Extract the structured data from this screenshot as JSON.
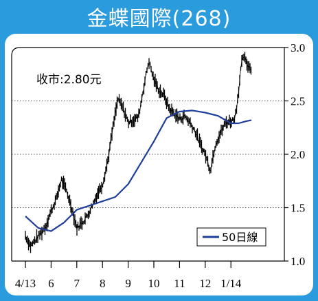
{
  "title": "金蝶國際(268)",
  "close_label": "收市:2.80元",
  "colors": {
    "frame": "#2a9bdc",
    "price": "#000000",
    "ma": "#1f3d9a",
    "grid": "#555555"
  },
  "chart_data": {
    "type": "line",
    "title": "金蝶國際(268)",
    "annotation": "收市:2.80元",
    "x_tick_labels": [
      "4/13",
      "6",
      "7",
      "8",
      "9",
      "10",
      "11",
      "12",
      "1/14"
    ],
    "y_ticks": [
      "1.0",
      "1.5",
      "2.0",
      "2.5",
      "3.0"
    ],
    "y_tick_values": [
      1.0,
      1.5,
      2.0,
      2.5,
      3.0
    ],
    "ylim": [
      1.0,
      3.0
    ],
    "grid": "horizontal dotted at 1.5, 2.0, 2.5",
    "legend_placement": "bottom-right",
    "series": [
      {
        "name": "price",
        "style": "daily high-low bars",
        "month_index": [
          0.0,
          0.2,
          0.4,
          0.6,
          0.8,
          1.0,
          1.2,
          1.4,
          1.6,
          1.8,
          2.0,
          2.2,
          2.4,
          2.6,
          2.8,
          3.0,
          3.2,
          3.4,
          3.6,
          3.8,
          4.0,
          4.2,
          4.4,
          4.6,
          4.8,
          5.0,
          5.2,
          5.4,
          5.6,
          5.8,
          6.0,
          6.2,
          6.4,
          6.6,
          6.8,
          7.0,
          7.2,
          7.4,
          7.6,
          7.8,
          8.0,
          8.1,
          8.2,
          8.3,
          8.4,
          8.5,
          8.6,
          8.8
        ],
        "values": [
          1.24,
          1.14,
          1.2,
          1.26,
          1.33,
          1.47,
          1.58,
          1.76,
          1.66,
          1.5,
          1.31,
          1.36,
          1.42,
          1.52,
          1.63,
          1.72,
          1.93,
          2.24,
          2.52,
          2.43,
          2.3,
          2.32,
          2.35,
          2.62,
          2.88,
          2.7,
          2.6,
          2.55,
          2.43,
          2.38,
          2.33,
          2.36,
          2.3,
          2.22,
          2.1,
          2.0,
          1.85,
          2.1,
          2.2,
          2.3,
          2.31,
          2.32,
          2.4,
          2.6,
          2.83,
          2.92,
          2.85,
          2.8
        ]
      },
      {
        "name": "50日線",
        "style": "line",
        "month_index": [
          0.0,
          0.5,
          1.0,
          1.5,
          2.0,
          2.5,
          3.0,
          3.5,
          4.0,
          4.5,
          5.0,
          5.5,
          6.0,
          6.5,
          7.0,
          7.5,
          8.0,
          8.3,
          8.6,
          8.8
        ],
        "values": [
          1.42,
          1.31,
          1.28,
          1.36,
          1.48,
          1.52,
          1.56,
          1.6,
          1.72,
          1.92,
          2.12,
          2.34,
          2.4,
          2.41,
          2.39,
          2.36,
          2.29,
          2.29,
          2.31,
          2.32
        ]
      }
    ]
  }
}
